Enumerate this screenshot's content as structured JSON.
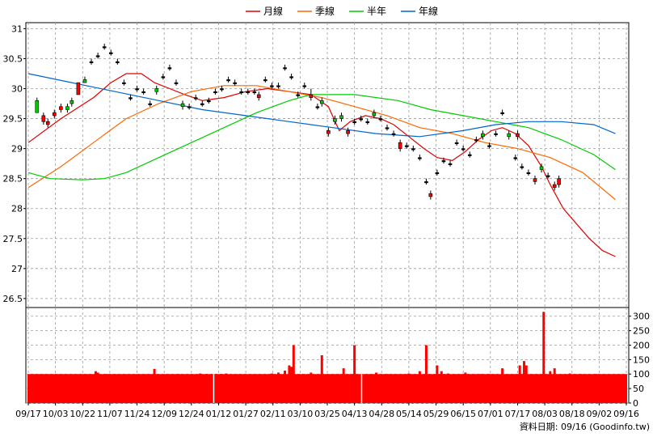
{
  "chart_data": [
    {
      "type": "candlestick",
      "legend": [
        {
          "label": "月線",
          "color": "#e00000"
        },
        {
          "label": "季線",
          "color": "#ff6600"
        },
        {
          "label": "半年",
          "color": "#00cc00"
        },
        {
          "label": "年線",
          "color": "#0066cc"
        }
      ],
      "up_color": "#00cc00",
      "down_color": "#ff0000",
      "ylim": [
        26.35,
        31.1
      ],
      "y_ticks": [
        31,
        30.5,
        30,
        29.5,
        29,
        28.5,
        28,
        27.5,
        27,
        26.5
      ],
      "x_ticks": [
        "09/17",
        "10/03",
        "10/22",
        "11/07",
        "11/24",
        "12/09",
        "12/24",
        "01/12",
        "01/27",
        "02/11",
        "03/10",
        "03/25",
        "04/13",
        "04/28",
        "05/14",
        "05/29",
        "06/15",
        "07/01",
        "07/17",
        "08/03",
        "08/18",
        "09/02",
        "09/16"
      ],
      "n_bars": 245,
      "candles": [
        [
          4,
          29.6,
          29.8,
          29.85,
          29.6
        ],
        [
          7,
          29.55,
          29.45,
          29.6,
          29.4
        ],
        [
          9,
          29.45,
          29.4,
          29.5,
          29.35
        ],
        [
          12,
          29.6,
          29.55,
          29.65,
          29.5
        ],
        [
          15,
          29.7,
          29.65,
          29.75,
          29.6
        ],
        [
          18,
          29.65,
          29.7,
          29.75,
          29.6
        ],
        [
          20,
          29.75,
          29.8,
          29.85,
          29.7
        ],
        [
          23,
          30.1,
          29.9,
          30.1,
          29.9
        ],
        [
          26,
          30.1,
          30.15,
          30.2,
          30.1
        ],
        [
          29,
          30.45,
          30.45,
          30.5,
          30.4
        ],
        [
          32,
          30.55,
          30.55,
          30.6,
          30.5
        ],
        [
          35,
          30.7,
          30.7,
          30.75,
          30.65
        ],
        [
          38,
          30.6,
          30.6,
          30.65,
          30.55
        ],
        [
          41,
          30.45,
          30.45,
          30.5,
          30.4
        ],
        [
          44,
          30.1,
          30.1,
          30.15,
          30.05
        ],
        [
          47,
          29.85,
          29.85,
          29.9,
          29.8
        ],
        [
          50,
          30.0,
          30.0,
          30.05,
          29.95
        ],
        [
          53,
          29.95,
          29.95,
          30.0,
          29.9
        ],
        [
          56,
          29.75,
          29.75,
          29.8,
          29.7
        ],
        [
          59,
          29.95,
          30.0,
          30.05,
          29.9
        ],
        [
          62,
          30.2,
          30.2,
          30.25,
          30.15
        ],
        [
          65,
          30.35,
          30.35,
          30.4,
          30.3
        ],
        [
          68,
          30.1,
          30.1,
          30.15,
          30.05
        ],
        [
          71,
          29.7,
          29.75,
          29.8,
          29.65
        ],
        [
          74,
          29.7,
          29.7,
          29.75,
          29.65
        ],
        [
          77,
          29.85,
          29.85,
          29.9,
          29.8
        ],
        [
          80,
          29.75,
          29.75,
          29.8,
          29.7
        ],
        [
          83,
          29.8,
          29.8,
          29.85,
          29.75
        ],
        [
          86,
          29.95,
          29.95,
          30.0,
          29.9
        ],
        [
          89,
          30.0,
          30.0,
          30.05,
          29.95
        ],
        [
          92,
          30.15,
          30.15,
          30.2,
          30.1
        ],
        [
          95,
          30.1,
          30.1,
          30.15,
          30.05
        ],
        [
          98,
          29.95,
          29.95,
          30.0,
          29.9
        ],
        [
          101,
          29.95,
          29.95,
          30.0,
          29.9
        ],
        [
          104,
          29.95,
          29.95,
          30.0,
          29.9
        ],
        [
          106,
          29.9,
          29.85,
          29.95,
          29.8
        ],
        [
          109,
          30.15,
          30.15,
          30.2,
          30.1
        ],
        [
          112,
          30.05,
          30.05,
          30.1,
          30.0
        ],
        [
          115,
          30.05,
          30.05,
          30.1,
          30.0
        ],
        [
          118,
          30.35,
          30.35,
          30.4,
          30.3
        ],
        [
          121,
          30.2,
          30.2,
          30.25,
          30.15
        ],
        [
          124,
          29.9,
          29.9,
          29.95,
          29.85
        ],
        [
          127,
          30.05,
          30.05,
          30.1,
          30.0
        ],
        [
          130,
          29.9,
          29.85,
          30.0,
          29.8
        ],
        [
          133,
          29.7,
          29.7,
          29.75,
          29.65
        ],
        [
          135,
          29.75,
          29.8,
          29.85,
          29.7
        ],
        [
          138,
          29.3,
          29.25,
          29.35,
          29.2
        ],
        [
          141,
          29.45,
          29.5,
          29.55,
          29.4
        ],
        [
          144,
          29.5,
          29.55,
          29.6,
          29.45
        ],
        [
          147,
          29.3,
          29.25,
          29.35,
          29.2
        ],
        [
          150,
          29.45,
          29.45,
          29.5,
          29.4
        ],
        [
          153,
          29.5,
          29.5,
          29.55,
          29.45
        ],
        [
          156,
          29.45,
          29.45,
          29.5,
          29.4
        ],
        [
          159,
          29.55,
          29.6,
          29.65,
          29.5
        ],
        [
          162,
          29.5,
          29.5,
          29.55,
          29.45
        ],
        [
          165,
          29.35,
          29.35,
          29.4,
          29.3
        ],
        [
          168,
          29.25,
          29.25,
          29.3,
          29.2
        ],
        [
          171,
          29.1,
          29.0,
          29.15,
          28.95
        ],
        [
          174,
          29.05,
          29.05,
          29.1,
          29.0
        ],
        [
          177,
          29.0,
          29.0,
          29.05,
          28.95
        ],
        [
          180,
          28.85,
          28.85,
          28.9,
          28.8
        ],
        [
          183,
          28.45,
          28.45,
          28.5,
          28.4
        ],
        [
          185,
          28.25,
          28.2,
          28.3,
          28.15
        ],
        [
          188,
          28.6,
          28.6,
          28.65,
          28.55
        ],
        [
          191,
          28.8,
          28.8,
          28.85,
          28.75
        ],
        [
          194,
          28.75,
          28.75,
          28.8,
          28.7
        ],
        [
          197,
          29.1,
          29.1,
          29.15,
          29.05
        ],
        [
          200,
          29.0,
          29.0,
          29.05,
          28.95
        ],
        [
          203,
          28.9,
          28.9,
          28.95,
          28.85
        ],
        [
          206,
          29.15,
          29.15,
          29.2,
          29.1
        ],
        [
          209,
          29.2,
          29.25,
          29.3,
          29.15
        ],
        [
          212,
          29.05,
          29.05,
          29.1,
          29.0
        ],
        [
          215,
          29.25,
          29.25,
          29.3,
          29.2
        ],
        [
          218,
          29.6,
          29.6,
          29.65,
          29.55
        ],
        [
          221,
          29.2,
          29.25,
          29.3,
          29.15
        ],
        [
          224,
          28.85,
          28.85,
          28.9,
          28.8
        ],
        [
          227,
          28.7,
          28.7,
          28.75,
          28.65
        ],
        [
          230,
          28.6,
          28.6,
          28.65,
          28.55
        ],
        [
          233,
          28.5,
          28.45,
          28.55,
          28.4
        ],
        [
          236,
          28.65,
          28.7,
          28.75,
          28.6
        ],
        [
          239,
          28.55,
          28.55,
          28.6,
          28.5
        ],
        [
          242,
          28.4,
          28.35,
          28.45,
          28.3
        ],
        [
          244,
          28.5,
          28.4,
          28.55,
          28.35
        ],
        [
          225,
          29.25,
          29.2,
          29.3,
          29.15
        ]
      ],
      "series": [
        {
          "name": "月線",
          "color": "#e00000",
          "points": [
            [
              0,
              29.1
            ],
            [
              15,
              29.5
            ],
            [
              30,
              29.85
            ],
            [
              38,
              30.1
            ],
            [
              45,
              30.25
            ],
            [
              52,
              30.25
            ],
            [
              58,
              30.1
            ],
            [
              65,
              30.0
            ],
            [
              72,
              29.9
            ],
            [
              80,
              29.8
            ],
            [
              90,
              29.85
            ],
            [
              100,
              29.95
            ],
            [
              110,
              30.0
            ],
            [
              120,
              29.95
            ],
            [
              130,
              29.9
            ],
            [
              138,
              29.7
            ],
            [
              143,
              29.3
            ],
            [
              148,
              29.45
            ],
            [
              155,
              29.55
            ],
            [
              162,
              29.5
            ],
            [
              168,
              29.4
            ],
            [
              175,
              29.2
            ],
            [
              182,
              29.0
            ],
            [
              188,
              28.85
            ],
            [
              195,
              28.8
            ],
            [
              201,
              28.95
            ],
            [
              207,
              29.15
            ],
            [
              213,
              29.3
            ],
            [
              218,
              29.35
            ],
            [
              224,
              29.25
            ],
            [
              230,
              29.05
            ],
            [
              236,
              28.7
            ],
            [
              240,
              28.4
            ],
            [
              246,
              28.0
            ],
            [
              252,
              27.75
            ],
            [
              258,
              27.5
            ],
            [
              264,
              27.3
            ],
            [
              270,
              27.2
            ]
          ]
        },
        {
          "name": "季線",
          "color": "#ff6600",
          "points": [
            [
              0,
              28.35
            ],
            [
              15,
              28.7
            ],
            [
              30,
              29.1
            ],
            [
              45,
              29.5
            ],
            [
              60,
              29.75
            ],
            [
              75,
              29.95
            ],
            [
              90,
              30.05
            ],
            [
              105,
              30.05
            ],
            [
              120,
              29.95
            ],
            [
              135,
              29.85
            ],
            [
              150,
              29.7
            ],
            [
              165,
              29.55
            ],
            [
              180,
              29.35
            ],
            [
              195,
              29.25
            ],
            [
              210,
              29.1
            ],
            [
              225,
              29.0
            ],
            [
              240,
              28.85
            ],
            [
              255,
              28.6
            ],
            [
              270,
              28.15
            ]
          ]
        },
        {
          "name": "半年",
          "color": "#00cc00",
          "points": [
            [
              0,
              28.6
            ],
            [
              10,
              28.5
            ],
            [
              25,
              28.48
            ],
            [
              35,
              28.5
            ],
            [
              45,
              28.6
            ],
            [
              60,
              28.85
            ],
            [
              75,
              29.1
            ],
            [
              90,
              29.35
            ],
            [
              105,
              29.6
            ],
            [
              120,
              29.8
            ],
            [
              130,
              29.9
            ],
            [
              150,
              29.9
            ],
            [
              170,
              29.8
            ],
            [
              185,
              29.65
            ],
            [
              200,
              29.55
            ],
            [
              215,
              29.45
            ],
            [
              230,
              29.35
            ],
            [
              245,
              29.15
            ],
            [
              260,
              28.9
            ],
            [
              270,
              28.65
            ]
          ]
        },
        {
          "name": "年線",
          "color": "#0066cc",
          "points": [
            [
              0,
              30.25
            ],
            [
              20,
              30.1
            ],
            [
              40,
              29.95
            ],
            [
              60,
              29.8
            ],
            [
              80,
              29.65
            ],
            [
              100,
              29.55
            ],
            [
              120,
              29.45
            ],
            [
              140,
              29.35
            ],
            [
              160,
              29.25
            ],
            [
              180,
              29.2
            ],
            [
              200,
              29.3
            ],
            [
              215,
              29.4
            ],
            [
              230,
              29.45
            ],
            [
              245,
              29.45
            ],
            [
              260,
              29.4
            ],
            [
              270,
              29.25
            ]
          ]
        }
      ]
    },
    {
      "type": "bar",
      "ylim": [
        0,
        330
      ],
      "y_ticks": [
        300,
        250,
        200,
        150,
        100,
        50,
        0
      ],
      "baseline_value": 100,
      "color": "#ff0000",
      "spikes": [
        [
          31,
          110
        ],
        [
          32,
          105
        ],
        [
          36,
          100
        ],
        [
          58,
          118
        ],
        [
          69,
          100
        ],
        [
          79,
          102
        ],
        [
          82,
          100
        ],
        [
          86,
          100
        ],
        [
          89,
          100
        ],
        [
          91,
          102
        ],
        [
          112,
          102
        ],
        [
          115,
          105
        ],
        [
          118,
          112
        ],
        [
          120,
          130
        ],
        [
          121,
          125
        ],
        [
          122,
          200
        ],
        [
          130,
          105
        ],
        [
          135,
          165
        ],
        [
          145,
          120
        ],
        [
          150,
          200
        ],
        [
          160,
          105
        ],
        [
          165,
          100
        ],
        [
          175,
          102
        ],
        [
          180,
          110
        ],
        [
          183,
          200
        ],
        [
          188,
          130
        ],
        [
          190,
          110
        ],
        [
          193,
          102
        ],
        [
          201,
          105
        ],
        [
          208,
          100
        ],
        [
          212,
          100
        ],
        [
          218,
          120
        ],
        [
          226,
          130
        ],
        [
          228,
          145
        ],
        [
          229,
          130
        ],
        [
          237,
          315
        ],
        [
          240,
          110
        ],
        [
          242,
          120
        ],
        [
          249,
          102
        ],
        [
          254,
          100
        ],
        [
          261,
          100
        ]
      ]
    }
  ],
  "footer": "資料日期: 09/16  (Goodinfo.tw)"
}
